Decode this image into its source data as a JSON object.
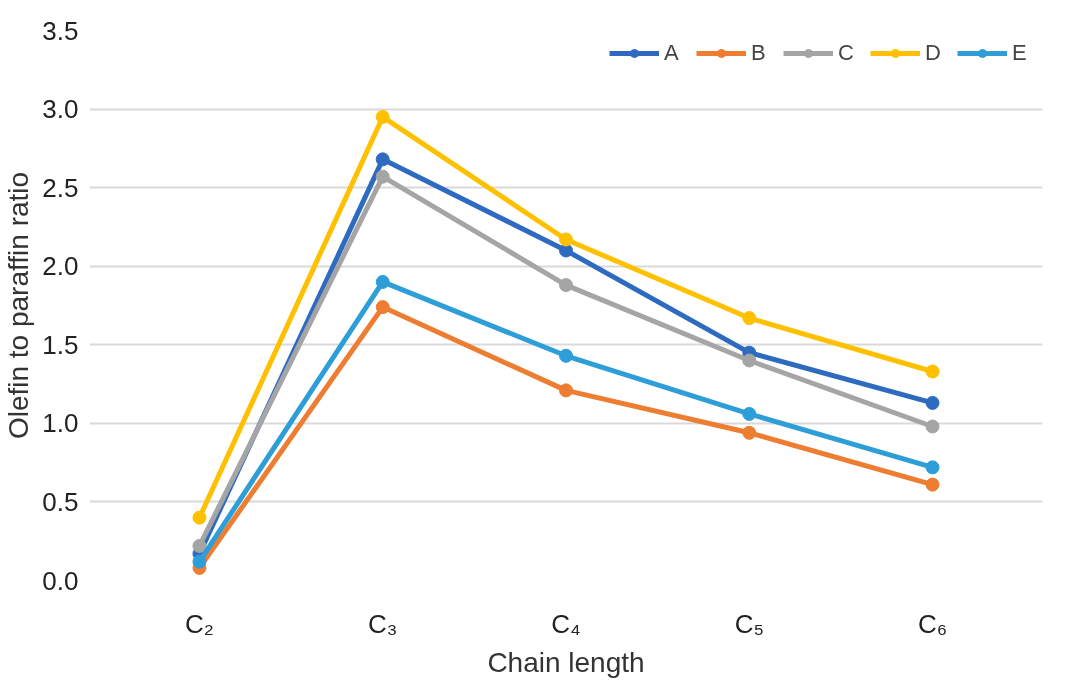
{
  "chart_data": {
    "type": "line",
    "xlabel": "Chain length",
    "ylabel": "Olefin to paraffin ratio",
    "categories": [
      "C₂",
      "C₃",
      "C₄",
      "C₅",
      "C₆"
    ],
    "series": [
      {
        "name": "A",
        "color": "#2e6bc0",
        "values": [
          0.17,
          2.68,
          2.1,
          1.45,
          1.13
        ]
      },
      {
        "name": "B",
        "color": "#ed7d31",
        "values": [
          0.08,
          1.74,
          1.21,
          0.94,
          0.61
        ]
      },
      {
        "name": "C",
        "color": "#a5a5a5",
        "values": [
          0.22,
          2.57,
          1.88,
          1.4,
          0.98
        ]
      },
      {
        "name": "D",
        "color": "#ffc000",
        "values": [
          0.4,
          2.95,
          2.17,
          1.67,
          1.33
        ]
      },
      {
        "name": "E",
        "color": "#2e9ed8",
        "values": [
          0.12,
          1.9,
          1.43,
          1.06,
          0.72
        ]
      }
    ],
    "ylim": [
      0,
      3.5
    ],
    "yticks": [
      {
        "value": 0,
        "label": "0.0"
      },
      0.5,
      {
        "value": 1,
        "label": "1.0"
      },
      1.5,
      {
        "value": 2,
        "label": "2.0"
      },
      2.5,
      {
        "value": 3,
        "label": "3.0"
      },
      3.5
    ],
    "grid": "y",
    "legend": "top right",
    "marker": "circle",
    "line_style": "solid"
  }
}
